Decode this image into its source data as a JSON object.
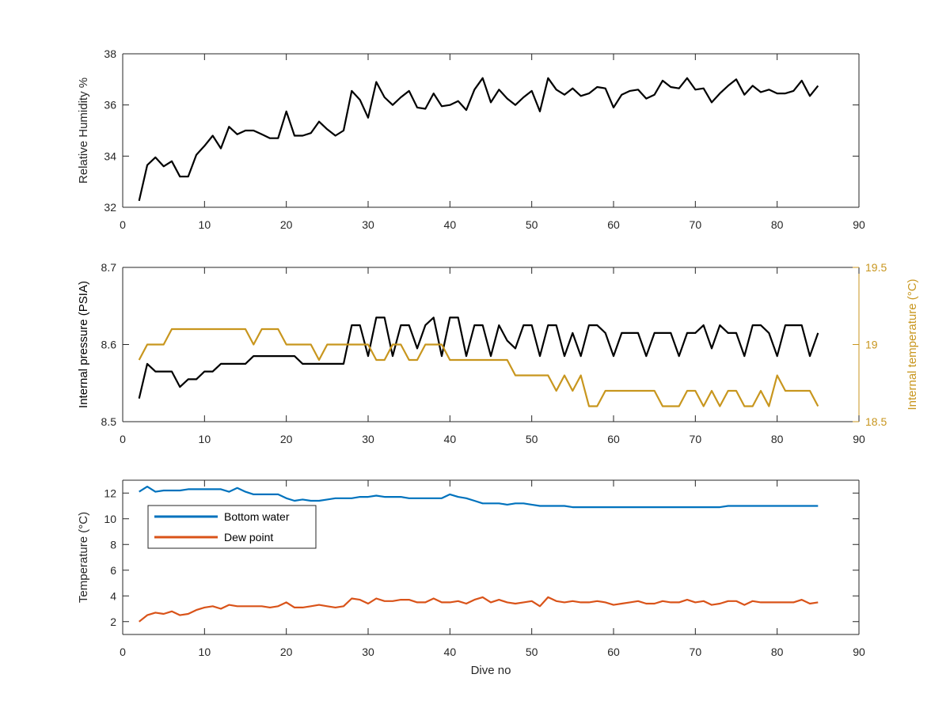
{
  "chart_data": [
    {
      "type": "line",
      "xlabel": "",
      "ylabel": "Relative Humidity %",
      "xlim": [
        0,
        90
      ],
      "ylim": [
        32,
        38
      ],
      "xticks": [
        "0",
        "10",
        "20",
        "30",
        "40",
        "50",
        "60",
        "70",
        "80",
        "90"
      ],
      "yticks": [
        "32",
        "34",
        "36",
        "38"
      ],
      "grid": false,
      "series": [
        {
          "color": "#000000",
          "x": [
            2,
            3,
            4,
            5,
            6,
            7,
            8,
            9,
            10,
            11,
            12,
            13,
            14,
            15,
            16,
            17,
            18,
            19,
            20,
            21,
            22,
            23,
            24,
            25,
            26,
            27,
            28,
            29,
            30,
            31,
            32,
            33,
            34,
            35,
            36,
            37,
            38,
            39,
            40,
            41,
            42,
            43,
            44,
            45,
            46,
            47,
            48,
            49,
            50,
            51,
            52,
            53,
            54,
            55,
            56,
            57,
            58,
            59,
            60,
            61,
            62,
            63,
            64,
            65,
            66,
            67,
            68,
            69,
            70,
            71,
            72,
            73,
            74,
            75,
            76,
            77,
            78,
            79,
            80,
            81,
            82,
            83,
            84,
            85
          ],
          "values": [
            32.25,
            33.65,
            33.95,
            33.6,
            33.8,
            33.2,
            33.2,
            34.05,
            34.4,
            34.8,
            34.3,
            35.15,
            34.85,
            35.0,
            35.0,
            34.85,
            34.7,
            34.7,
            35.75,
            34.8,
            34.8,
            34.9,
            35.35,
            35.05,
            34.8,
            35.0,
            36.55,
            36.2,
            35.5,
            36.9,
            36.3,
            36.0,
            36.3,
            36.55,
            35.9,
            35.85,
            36.45,
            35.95,
            36.0,
            36.15,
            35.8,
            36.6,
            37.05,
            36.1,
            36.6,
            36.25,
            36.0,
            36.3,
            36.55,
            35.75,
            37.05,
            36.6,
            36.4,
            36.65,
            36.35,
            36.45,
            36.7,
            36.65,
            35.9,
            36.4,
            36.55,
            36.6,
            36.25,
            36.4,
            36.95,
            36.7,
            36.65,
            37.05,
            36.6,
            36.65,
            36.1,
            36.45,
            36.75,
            37.0,
            36.4,
            36.75,
            36.5,
            36.6,
            36.45,
            36.45,
            36.55,
            36.95,
            36.35,
            36.75
          ]
        }
      ]
    },
    {
      "type": "line",
      "xlabel": "",
      "ylabel": "Internal pressure (PSIA)",
      "y2label": "Internal temperature (°C)",
      "xlim": [
        0,
        90
      ],
      "ylim": [
        8.5,
        8.7
      ],
      "y2lim": [
        18.5,
        19.5
      ],
      "xticks": [
        "0",
        "10",
        "20",
        "30",
        "40",
        "50",
        "60",
        "70",
        "80",
        "90"
      ],
      "yticks": [
        "8.5",
        "8.6",
        "8.7"
      ],
      "y2ticks": [
        "18.5",
        "19",
        "19.5"
      ],
      "grid": false,
      "series": [
        {
          "axis": "left",
          "color": "#000000",
          "x": [
            2,
            3,
            4,
            5,
            6,
            7,
            8,
            9,
            10,
            11,
            12,
            13,
            14,
            15,
            16,
            17,
            18,
            19,
            20,
            21,
            22,
            23,
            24,
            25,
            26,
            27,
            28,
            29,
            30,
            31,
            32,
            33,
            34,
            35,
            36,
            37,
            38,
            39,
            40,
            41,
            42,
            43,
            44,
            45,
            46,
            47,
            48,
            49,
            50,
            51,
            52,
            53,
            54,
            55,
            56,
            57,
            58,
            59,
            60,
            61,
            62,
            63,
            64,
            65,
            66,
            67,
            68,
            69,
            70,
            71,
            72,
            73,
            74,
            75,
            76,
            77,
            78,
            79,
            80,
            81,
            82,
            83,
            84,
            85
          ],
          "values": [
            8.53,
            8.575,
            8.565,
            8.565,
            8.565,
            8.545,
            8.555,
            8.555,
            8.565,
            8.565,
            8.575,
            8.575,
            8.575,
            8.575,
            8.585,
            8.585,
            8.585,
            8.585,
            8.585,
            8.585,
            8.575,
            8.575,
            8.575,
            8.575,
            8.575,
            8.575,
            8.625,
            8.625,
            8.585,
            8.635,
            8.635,
            8.585,
            8.625,
            8.625,
            8.595,
            8.625,
            8.635,
            8.585,
            8.635,
            8.635,
            8.585,
            8.625,
            8.625,
            8.585,
            8.625,
            8.605,
            8.595,
            8.625,
            8.625,
            8.585,
            8.625,
            8.625,
            8.585,
            8.615,
            8.585,
            8.625,
            8.625,
            8.615,
            8.585,
            8.615,
            8.615,
            8.615,
            8.585,
            8.615,
            8.615,
            8.615,
            8.585,
            8.615,
            8.615,
            8.625,
            8.595,
            8.625,
            8.615,
            8.615,
            8.585,
            8.625,
            8.625,
            8.615,
            8.585,
            8.625,
            8.625,
            8.625,
            8.585,
            8.615
          ]
        },
        {
          "axis": "right",
          "color": "#C8961E",
          "x": [
            2,
            3,
            4,
            5,
            6,
            7,
            8,
            9,
            10,
            11,
            12,
            13,
            14,
            15,
            16,
            17,
            18,
            19,
            20,
            21,
            22,
            23,
            24,
            25,
            26,
            27,
            28,
            29,
            30,
            31,
            32,
            33,
            34,
            35,
            36,
            37,
            38,
            39,
            40,
            41,
            42,
            43,
            44,
            45,
            46,
            47,
            48,
            49,
            50,
            51,
            52,
            53,
            54,
            55,
            56,
            57,
            58,
            59,
            60,
            61,
            62,
            63,
            64,
            65,
            66,
            67,
            68,
            69,
            70,
            71,
            72,
            73,
            74,
            75,
            76,
            77,
            78,
            79,
            80,
            81,
            82,
            83,
            84,
            85
          ],
          "values": [
            18.9,
            19.0,
            19.0,
            19.0,
            19.1,
            19.1,
            19.1,
            19.1,
            19.1,
            19.1,
            19.1,
            19.1,
            19.1,
            19.1,
            19.0,
            19.1,
            19.1,
            19.1,
            19.0,
            19.0,
            19.0,
            19.0,
            18.9,
            19.0,
            19.0,
            19.0,
            19.0,
            19.0,
            19.0,
            18.9,
            18.9,
            19.0,
            19.0,
            18.9,
            18.9,
            19.0,
            19.0,
            19.0,
            18.9,
            18.9,
            18.9,
            18.9,
            18.9,
            18.9,
            18.9,
            18.9,
            18.8,
            18.8,
            18.8,
            18.8,
            18.8,
            18.7,
            18.8,
            18.7,
            18.8,
            18.6,
            18.6,
            18.7,
            18.7,
            18.7,
            18.7,
            18.7,
            18.7,
            18.7,
            18.6,
            18.6,
            18.6,
            18.7,
            18.7,
            18.6,
            18.7,
            18.6,
            18.7,
            18.7,
            18.6,
            18.6,
            18.7,
            18.6,
            18.8,
            18.7,
            18.7,
            18.7,
            18.7,
            18.6
          ]
        }
      ]
    },
    {
      "type": "line",
      "xlabel": "Dive no",
      "ylabel": "Temperature (°C)",
      "xlim": [
        0,
        90
      ],
      "ylim": [
        1,
        13
      ],
      "xticks": [
        "0",
        "10",
        "20",
        "30",
        "40",
        "50",
        "60",
        "70",
        "80",
        "90"
      ],
      "yticks": [
        "2",
        "4",
        "6",
        "8",
        "10",
        "12"
      ],
      "grid": false,
      "legend": "top-left",
      "series": [
        {
          "name": "Bottom water",
          "color": "#0072BD",
          "x": [
            2,
            3,
            4,
            5,
            6,
            7,
            8,
            9,
            10,
            11,
            12,
            13,
            14,
            15,
            16,
            17,
            18,
            19,
            20,
            21,
            22,
            23,
            24,
            25,
            26,
            27,
            28,
            29,
            30,
            31,
            32,
            33,
            34,
            35,
            36,
            37,
            38,
            39,
            40,
            41,
            42,
            43,
            44,
            45,
            46,
            47,
            48,
            49,
            50,
            51,
            52,
            53,
            54,
            55,
            56,
            57,
            58,
            59,
            60,
            61,
            62,
            63,
            64,
            65,
            66,
            67,
            68,
            69,
            70,
            71,
            72,
            73,
            74,
            75,
            76,
            77,
            78,
            79,
            80,
            81,
            82,
            83,
            84,
            85
          ],
          "values": [
            12.1,
            12.5,
            12.1,
            12.2,
            12.2,
            12.2,
            12.3,
            12.3,
            12.3,
            12.3,
            12.3,
            12.1,
            12.4,
            12.1,
            11.9,
            11.9,
            11.9,
            11.9,
            11.6,
            11.4,
            11.5,
            11.4,
            11.4,
            11.5,
            11.6,
            11.6,
            11.6,
            11.7,
            11.7,
            11.8,
            11.7,
            11.7,
            11.7,
            11.6,
            11.6,
            11.6,
            11.6,
            11.6,
            11.9,
            11.7,
            11.6,
            11.4,
            11.2,
            11.2,
            11.2,
            11.1,
            11.2,
            11.2,
            11.1,
            11.0,
            11.0,
            11.0,
            11.0,
            10.9,
            10.9,
            10.9,
            10.9,
            10.9,
            10.9,
            10.9,
            10.9,
            10.9,
            10.9,
            10.9,
            10.9,
            10.9,
            10.9,
            10.9,
            10.9,
            10.9,
            10.9,
            10.9,
            11.0,
            11.0,
            11.0,
            11.0,
            11.0,
            11.0,
            11.0,
            11.0,
            11.0,
            11.0,
            11.0,
            11.0
          ]
        },
        {
          "name": "Dew point",
          "color": "#D95319",
          "x": [
            2,
            3,
            4,
            5,
            6,
            7,
            8,
            9,
            10,
            11,
            12,
            13,
            14,
            15,
            16,
            17,
            18,
            19,
            20,
            21,
            22,
            23,
            24,
            25,
            26,
            27,
            28,
            29,
            30,
            31,
            32,
            33,
            34,
            35,
            36,
            37,
            38,
            39,
            40,
            41,
            42,
            43,
            44,
            45,
            46,
            47,
            48,
            49,
            50,
            51,
            52,
            53,
            54,
            55,
            56,
            57,
            58,
            59,
            60,
            61,
            62,
            63,
            64,
            65,
            66,
            67,
            68,
            69,
            70,
            71,
            72,
            73,
            74,
            75,
            76,
            77,
            78,
            79,
            80,
            81,
            82,
            83,
            84,
            85
          ],
          "values": [
            2.0,
            2.5,
            2.7,
            2.6,
            2.8,
            2.5,
            2.6,
            2.9,
            3.1,
            3.2,
            3.0,
            3.3,
            3.2,
            3.2,
            3.2,
            3.2,
            3.1,
            3.2,
            3.5,
            3.1,
            3.1,
            3.2,
            3.3,
            3.2,
            3.1,
            3.2,
            3.8,
            3.7,
            3.4,
            3.8,
            3.6,
            3.6,
            3.7,
            3.7,
            3.5,
            3.5,
            3.8,
            3.5,
            3.5,
            3.6,
            3.4,
            3.7,
            3.9,
            3.5,
            3.7,
            3.5,
            3.4,
            3.5,
            3.6,
            3.2,
            3.9,
            3.6,
            3.5,
            3.6,
            3.5,
            3.5,
            3.6,
            3.5,
            3.3,
            3.4,
            3.5,
            3.6,
            3.4,
            3.4,
            3.6,
            3.5,
            3.5,
            3.7,
            3.5,
            3.6,
            3.3,
            3.4,
            3.6,
            3.6,
            3.3,
            3.6,
            3.5,
            3.5,
            3.5,
            3.5,
            3.5,
            3.7,
            3.4,
            3.5
          ]
        }
      ]
    }
  ]
}
